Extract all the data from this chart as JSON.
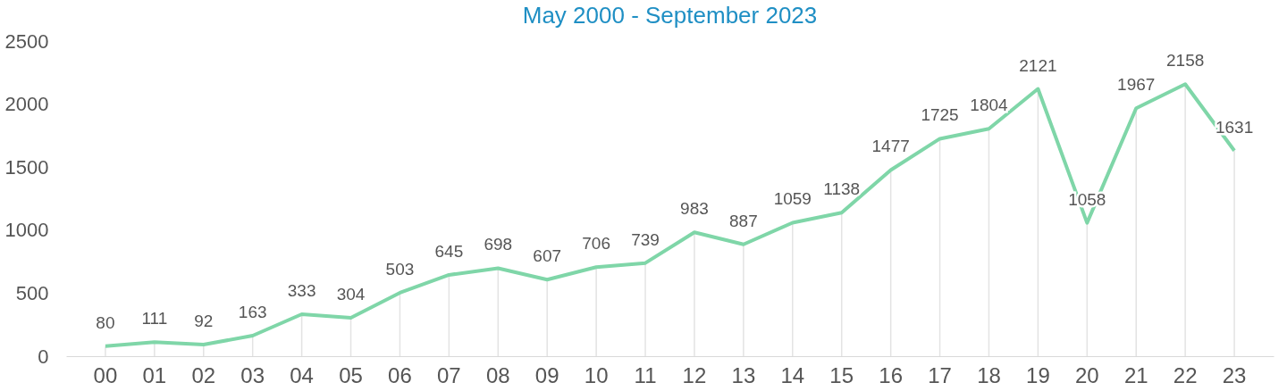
{
  "chart_data": {
    "type": "line",
    "title": "May 2000 - September 2023",
    "categories": [
      "00",
      "01",
      "02",
      "03",
      "04",
      "05",
      "06",
      "07",
      "08",
      "09",
      "10",
      "11",
      "12",
      "13",
      "14",
      "15",
      "16",
      "17",
      "18",
      "19",
      "20",
      "21",
      "22",
      "23"
    ],
    "series": [
      {
        "color": "#7fd6a8",
        "values": [
          80,
          111,
          92,
          163,
          333,
          304,
          503,
          645,
          698,
          607,
          706,
          739,
          983,
          887,
          1059,
          1138,
          1477,
          1725,
          1804,
          2121,
          1058,
          1967,
          2158,
          1631
        ]
      }
    ],
    "ylim": [
      0,
      2500
    ],
    "yticks": [
      0,
      500,
      1000,
      1500,
      2000,
      2500
    ],
    "grid": "x",
    "legend": false,
    "data_labels": true,
    "marker": "none",
    "line_style": "solid"
  }
}
